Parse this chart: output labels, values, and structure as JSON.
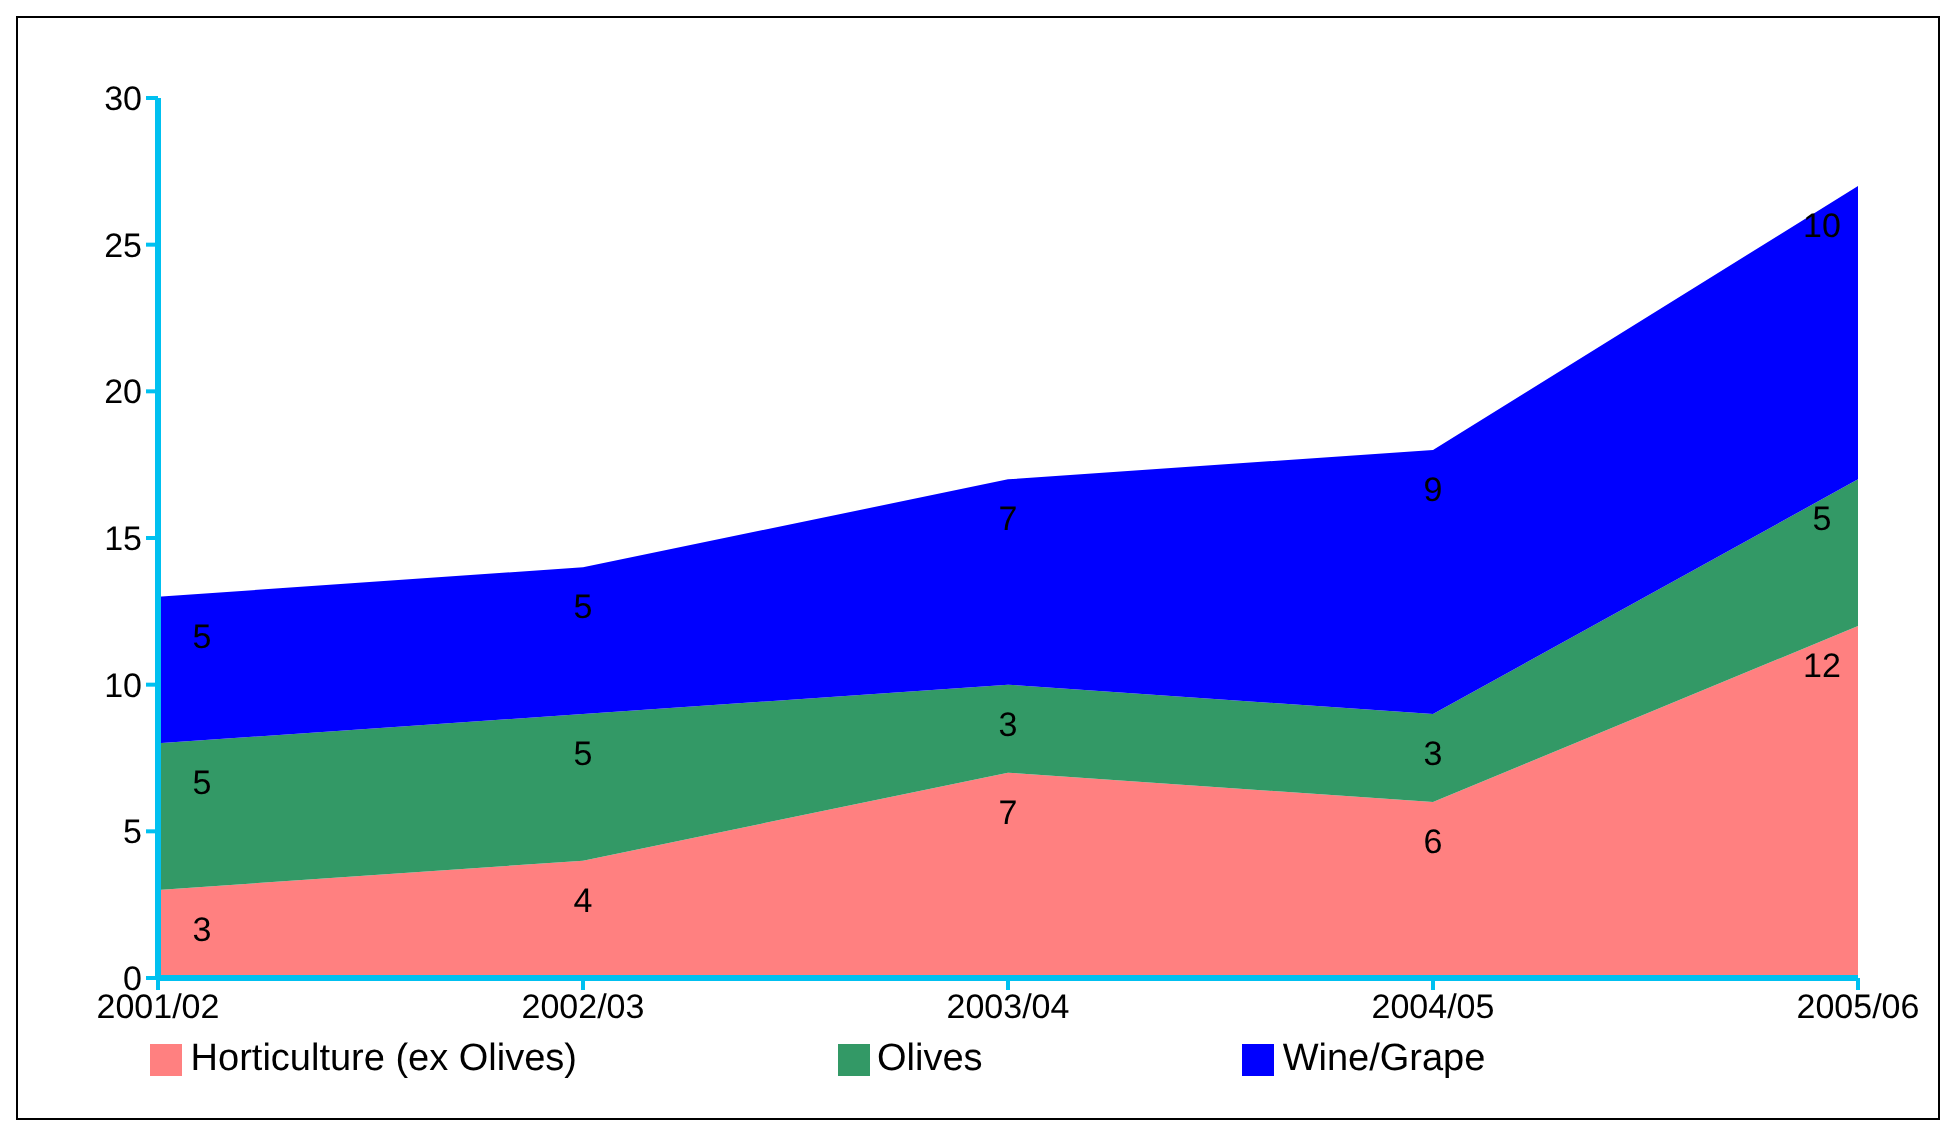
{
  "chart_data": {
    "type": "area",
    "stacked": true,
    "categories": [
      "2001/02",
      "2002/03",
      "2003/04",
      "2004/05",
      "2005/06"
    ],
    "series": [
      {
        "name": "Horticulture (ex Olives)",
        "color": "#ff8080",
        "values": [
          3,
          4,
          7,
          6,
          12
        ]
      },
      {
        "name": "Olives",
        "color": "#339966",
        "values": [
          5,
          5,
          3,
          3,
          5
        ]
      },
      {
        "name": "Wine/Grape",
        "color": "#0000ff",
        "values": [
          5,
          5,
          7,
          9,
          10
        ]
      }
    ],
    "ylim": [
      0,
      30
    ],
    "yticks": [
      0,
      5,
      10,
      15,
      20,
      25,
      30
    ],
    "grid": false,
    "legend": "bottom",
    "data_labels": true
  }
}
